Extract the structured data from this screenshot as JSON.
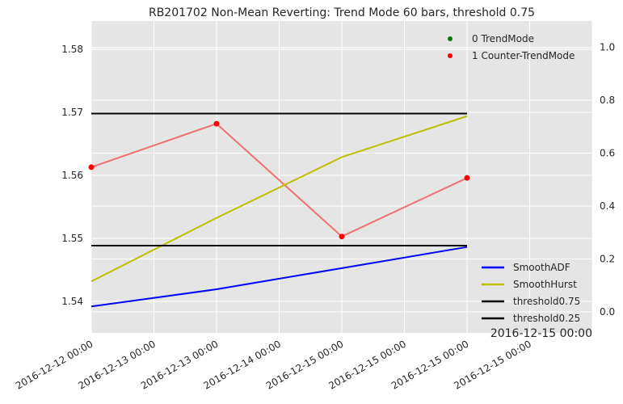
{
  "chart_data": {
    "type": "line",
    "title": "RB201702 Non-Mean Reverting: Trend Mode 60 bars, threshold 0.75",
    "x_tick_labels": [
      "2016-12-12 00:00",
      "2016-12-13 00:00",
      "2016-12-13 00:00",
      "2016-12-14 00:00",
      "2016-12-15 00:00",
      "2016-12-15 00:00",
      "2016-12-15 00:00",
      "2016-12-15 00:00"
    ],
    "x_offset_label": "2016-12-15 00:00",
    "x_points": [
      0,
      1,
      2,
      3
    ],
    "xlim": [
      0,
      4
    ],
    "left_axis": {
      "ylim": [
        1.535,
        1.5845
      ],
      "ticks": [
        1.54,
        1.55,
        1.56,
        1.57,
        1.58
      ],
      "tick_labels": [
        "1.54",
        "1.55",
        "1.56",
        "1.57",
        "1.58"
      ]
    },
    "right_axis": {
      "ylim": [
        -0.08,
        1.1
      ],
      "ticks": [
        0.0,
        0.2,
        0.4,
        0.6,
        0.8,
        1.0
      ],
      "tick_labels": [
        "0.0",
        "0.2",
        "0.4",
        "0.6",
        "0.8",
        "1.0"
      ]
    },
    "price_line": {
      "values": [
        1.5613,
        1.5682,
        1.5503,
        1.5596
      ],
      "color": "#f07070"
    },
    "series": [
      {
        "name": "SmoothADF",
        "axis": "right",
        "values": [
          0.02,
          0.085,
          0.165,
          0.245
        ],
        "color": "#0000ff"
      },
      {
        "name": "SmoothHurst",
        "axis": "right",
        "values": [
          0.115,
          0.355,
          0.585,
          0.74
        ],
        "color": "#bfbf00"
      },
      {
        "name": "threshold0.75",
        "axis": "right",
        "values": [
          0.75,
          0.75,
          0.75,
          0.75
        ],
        "color": "#000000"
      },
      {
        "name": "threshold0.25",
        "axis": "right",
        "values": [
          0.25,
          0.25,
          0.25,
          0.25
        ],
        "color": "#000000"
      }
    ],
    "scatter": [
      {
        "name": "0 TrendMode",
        "color": "#008000",
        "values": []
      },
      {
        "name": "1 Counter-TrendMode",
        "color": "#ff0000",
        "values": [
          1.5613,
          1.5682,
          1.5503,
          1.5596
        ]
      }
    ],
    "legend_top": {
      "placement": "top-right",
      "entries": [
        "0 TrendMode",
        "1 Counter-TrendMode"
      ]
    },
    "legend_bottom": {
      "placement": "lower-right",
      "entries": [
        "SmoothADF",
        "SmoothHurst",
        "threshold0.75",
        "threshold0.25"
      ]
    },
    "grid": true,
    "background": "#e5e5e5"
  }
}
